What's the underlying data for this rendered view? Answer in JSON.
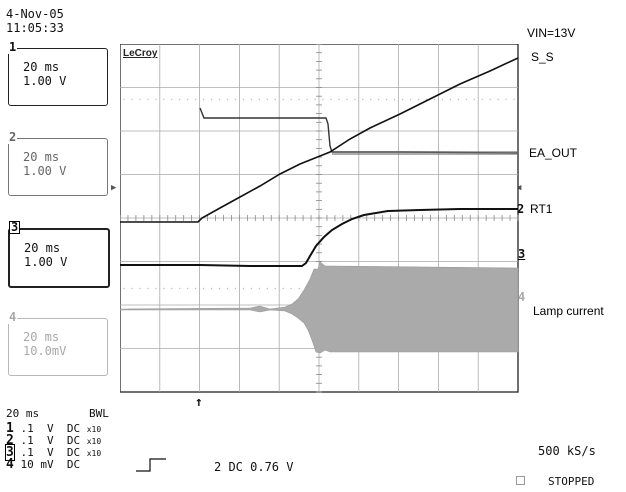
{
  "header": {
    "date": "4-Nov-05",
    "time": "11:05:33"
  },
  "channels": [
    {
      "number": "1",
      "timebase": "20 ms",
      "scale": "1.00 V"
    },
    {
      "number": "2",
      "timebase": "20 ms",
      "scale": "1.00 V"
    },
    {
      "number": "3",
      "timebase": "20 ms",
      "scale": "1.00 V"
    },
    {
      "number": "4",
      "timebase": "20 ms",
      "scale": "10.0mV"
    }
  ],
  "scope": {
    "brand": "LeCroy"
  },
  "trace_labels": {
    "vin": "VIN=13V",
    "ss": "S_S",
    "ea_out": "EA_OUT",
    "rt1": "RT1",
    "lamp": "Lamp current"
  },
  "trace_markers": {
    "rt1": "2",
    "ch3": "3",
    "ch4": "4"
  },
  "footer": {
    "timebase": "20 ms",
    "bwl": "BWL",
    "coupling": [
      {
        "ch": "1",
        "scale": ".1",
        "unit": "V",
        "mode": "DC",
        "probe": "x10"
      },
      {
        "ch": "2",
        "scale": ".1",
        "unit": "V",
        "mode": "DC",
        "probe": "x10"
      },
      {
        "ch": "3",
        "scale": ".1",
        "unit": "V",
        "mode": "DC",
        "probe": "x10"
      },
      {
        "ch": "4",
        "scale": "10",
        "unit": "mV",
        "mode": "DC",
        "probe": ""
      }
    ],
    "trigger": "2 DC 0.76 V",
    "sample_rate": "500 kS/s",
    "status": "STOPPED"
  }
}
